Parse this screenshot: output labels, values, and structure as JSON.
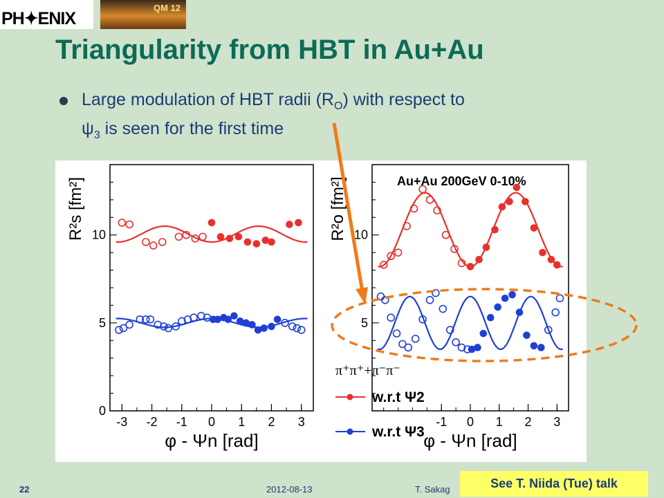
{
  "header": {
    "logo_text": "PH✦ENIX",
    "photo_label": "QM 12"
  },
  "slide": {
    "title": "Triangularity from HBT in Au+Au",
    "bullet_line1_pre": "Large modulation of HBT radii (R",
    "bullet_line1_sub": "O",
    "bullet_line1_post": ") with respect to",
    "bullet_line2_sym": "ψ",
    "bullet_line2_sub": "3",
    "bullet_line2_post": " is seen for the first time"
  },
  "footer": {
    "page": "22",
    "date": "2012-08-13",
    "author": "T. Sakag",
    "note": "See T. Niida (Tue) talk"
  },
  "colors": {
    "red": "#e8302c",
    "blue": "#1f3fd6",
    "orange": "#f07a1c",
    "title": "#0c6b57"
  },
  "chart_data": [
    {
      "type": "scatter",
      "panel": "left",
      "ylabel": "R²s [fm²]",
      "xlabel": "φ - Ψn [rad]",
      "xlim": [
        -3.4,
        3.4
      ],
      "ylim": [
        0,
        14
      ],
      "xticks": [
        "-3",
        "-2",
        "-1",
        "0",
        "1",
        "2",
        "3"
      ],
      "yticks": [
        "0",
        "5",
        "10"
      ],
      "series": [
        {
          "marker": "open-red",
          "color": "#e8302c",
          "x": [
            -3.0,
            -2.75,
            -2.2,
            -1.95,
            -1.65,
            -1.1,
            -0.85,
            -0.55,
            -0.3
          ],
          "y": [
            10.7,
            10.6,
            9.6,
            9.4,
            9.6,
            9.9,
            10.0,
            9.8,
            9.9
          ]
        },
        {
          "marker": "filled-red",
          "color": "#e8302c",
          "x": [
            0.0,
            0.3,
            0.6,
            0.9,
            1.2,
            1.5,
            1.8,
            2.0,
            2.6,
            2.9
          ],
          "y": [
            10.7,
            9.9,
            9.8,
            9.9,
            9.6,
            9.5,
            9.7,
            9.6,
            10.6,
            10.7
          ]
        },
        {
          "marker": "open-blue",
          "color": "#1f3fd6",
          "x": [
            -3.1,
            -2.95,
            -2.75,
            -2.4,
            -2.2,
            -2.05,
            -1.8,
            -1.6,
            -1.45,
            -1.2,
            -1.0,
            -0.8,
            -0.6,
            -0.35,
            -0.15
          ],
          "y": [
            4.6,
            4.7,
            4.9,
            5.2,
            5.2,
            5.2,
            4.9,
            4.8,
            4.7,
            4.8,
            5.1,
            5.2,
            5.3,
            5.4,
            5.3
          ]
        },
        {
          "marker": "filled-blue",
          "color": "#1f3fd6",
          "x": [
            0.05,
            0.2,
            0.4,
            0.55,
            0.75,
            0.95,
            1.15,
            1.35,
            1.55,
            1.75,
            2.0,
            2.2
          ],
          "y": [
            5.2,
            5.2,
            5.3,
            5.2,
            5.4,
            5.1,
            5.0,
            4.9,
            4.6,
            4.7,
            4.8,
            5.2
          ]
        },
        {
          "marker": "open-blue",
          "color": "#1f3fd6",
          "x": [
            2.45,
            2.7,
            2.85,
            3.0
          ],
          "y": [
            5.0,
            4.8,
            4.7,
            4.6
          ]
        }
      ],
      "fits": [
        {
          "color": "#e8302c",
          "offset": 10.05,
          "amp": -0.45,
          "harmonic": 2
        },
        {
          "color": "#1f3fd6",
          "offset": 5.0,
          "amp": 0.25,
          "harmonic": 2
        }
      ]
    },
    {
      "type": "scatter",
      "panel": "right",
      "ylabel": "R²o [fm²]",
      "xlabel": "φ - Ψn [rad]",
      "annotation": "Au+Au 200GeV 0-10%",
      "xlim": [
        -3.4,
        3.4
      ],
      "ylim": [
        0,
        14
      ],
      "xticks": [
        "-1",
        "0",
        "1",
        "2",
        "3"
      ],
      "yticks": [
        "5",
        "10"
      ],
      "series": [
        {
          "marker": "open-red",
          "color": "#e8302c",
          "x": [
            -3.0,
            -2.75,
            -2.5,
            -2.2,
            -1.95,
            -1.65,
            -1.4,
            -1.15,
            -0.85,
            -0.55,
            -0.3
          ],
          "y": [
            8.3,
            8.8,
            9.0,
            10.5,
            11.5,
            12.6,
            12.0,
            11.4,
            10.0,
            9.2,
            8.4
          ]
        },
        {
          "marker": "filled-red",
          "color": "#e8302c",
          "x": [
            0.0,
            0.3,
            0.55,
            0.85,
            1.1,
            1.35,
            1.6,
            1.9,
            2.2,
            2.5,
            2.8,
            3.0
          ],
          "y": [
            8.2,
            8.6,
            9.3,
            10.3,
            11.6,
            11.9,
            12.7,
            11.9,
            10.4,
            9.0,
            8.6,
            8.3
          ]
        },
        {
          "marker": "open-blue",
          "color": "#1f3fd6",
          "x": [
            -3.1,
            -2.95,
            -2.75,
            -2.55,
            -2.35,
            -2.15,
            -1.9,
            -1.65,
            -1.4,
            -1.2,
            -0.95,
            -0.7,
            -0.5,
            -0.3,
            -0.1
          ],
          "y": [
            6.5,
            6.3,
            5.3,
            4.4,
            3.8,
            3.6,
            4.1,
            5.2,
            6.3,
            6.7,
            5.8,
            4.6,
            3.9,
            3.6,
            3.5
          ]
        },
        {
          "marker": "filled-blue",
          "color": "#1f3fd6",
          "x": [
            0.05,
            0.25,
            0.45,
            0.7,
            0.95,
            1.2,
            1.45,
            1.7,
            1.95,
            2.2,
            2.45
          ],
          "y": [
            3.5,
            3.6,
            4.4,
            5.3,
            5.9,
            6.4,
            6.6,
            5.6,
            4.3,
            3.7,
            3.6
          ]
        },
        {
          "marker": "open-blue",
          "color": "#1f3fd6",
          "x": [
            2.7,
            2.95,
            3.1
          ],
          "y": [
            4.6,
            5.6,
            6.4
          ]
        }
      ],
      "fits": [
        {
          "color": "#e8302c",
          "offset": 10.3,
          "amp": -2.1,
          "harmonic": 2
        },
        {
          "color": "#1f3fd6",
          "offset": 5.0,
          "amp": 1.5,
          "harmonic": 3
        }
      ]
    }
  ],
  "legend": {
    "header": "π⁺π⁺+π⁻π⁻",
    "items": [
      {
        "label": "w.r.t Ψ2",
        "color": "#e8302c"
      },
      {
        "label": "w.r.t Ψ3",
        "color": "#1f3fd6"
      }
    ]
  }
}
